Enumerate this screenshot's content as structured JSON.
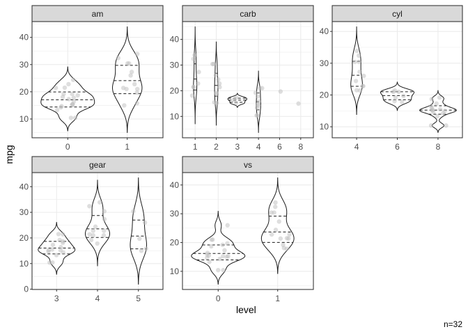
{
  "chart_data": {
    "type": "violin",
    "facets": [
      "am",
      "carb",
      "cyl",
      "gear",
      "vs"
    ],
    "xlabel": "level",
    "ylabel": "mpg",
    "caption": "n=32",
    "scales": "free",
    "grid": true,
    "draw_quantiles": [
      0.25,
      0.5,
      0.75
    ],
    "points": "jittered, grey, semi-transparent",
    "categories": {
      "am": [
        "0",
        "1"
      ],
      "carb": [
        "1",
        "2",
        "3",
        "4",
        "6",
        "8"
      ],
      "cyl": [
        "4",
        "6",
        "8"
      ],
      "gear": [
        "3",
        "4",
        "5"
      ],
      "vs": [
        "0",
        "1"
      ]
    },
    "data": {
      "mpg": [
        21.0,
        21.0,
        22.8,
        21.4,
        18.7,
        18.1,
        14.3,
        24.4,
        22.8,
        19.2,
        17.8,
        16.4,
        17.3,
        15.2,
        10.4,
        10.4,
        14.7,
        32.4,
        30.4,
        33.9,
        21.5,
        15.5,
        15.2,
        13.3,
        19.2,
        27.3,
        26.0,
        30.4,
        15.8,
        19.7,
        15.0,
        21.4
      ],
      "cyl": [
        6,
        6,
        4,
        6,
        8,
        6,
        8,
        4,
        4,
        6,
        6,
        8,
        8,
        8,
        8,
        8,
        8,
        4,
        4,
        4,
        4,
        8,
        8,
        8,
        8,
        4,
        4,
        4,
        8,
        6,
        8,
        4
      ],
      "vs": [
        0,
        0,
        1,
        1,
        0,
        1,
        0,
        1,
        1,
        1,
        1,
        0,
        0,
        0,
        0,
        0,
        0,
        1,
        1,
        1,
        1,
        0,
        0,
        0,
        0,
        1,
        0,
        1,
        0,
        0,
        0,
        1
      ],
      "am": [
        1,
        1,
        1,
        0,
        0,
        0,
        0,
        0,
        0,
        0,
        0,
        0,
        0,
        0,
        0,
        0,
        0,
        1,
        1,
        1,
        0,
        0,
        0,
        0,
        0,
        1,
        1,
        1,
        1,
        1,
        1,
        1
      ],
      "gear": [
        4,
        4,
        4,
        3,
        3,
        3,
        3,
        4,
        4,
        4,
        4,
        3,
        3,
        3,
        3,
        3,
        3,
        4,
        4,
        4,
        3,
        3,
        3,
        3,
        3,
        4,
        5,
        5,
        5,
        5,
        5,
        4
      ],
      "carb": [
        4,
        4,
        1,
        1,
        2,
        1,
        4,
        2,
        2,
        4,
        4,
        3,
        3,
        3,
        4,
        4,
        4,
        1,
        2,
        1,
        1,
        2,
        2,
        4,
        2,
        1,
        2,
        2,
        4,
        6,
        8,
        2
      ]
    },
    "colors": {
      "strip_fill": "#d9d9d9",
      "border": "#333333",
      "grid": "#ebebeb",
      "point": "#bebebe",
      "violin_line": "#1a1a1a",
      "tick_text": "#4d4d4d"
    }
  }
}
